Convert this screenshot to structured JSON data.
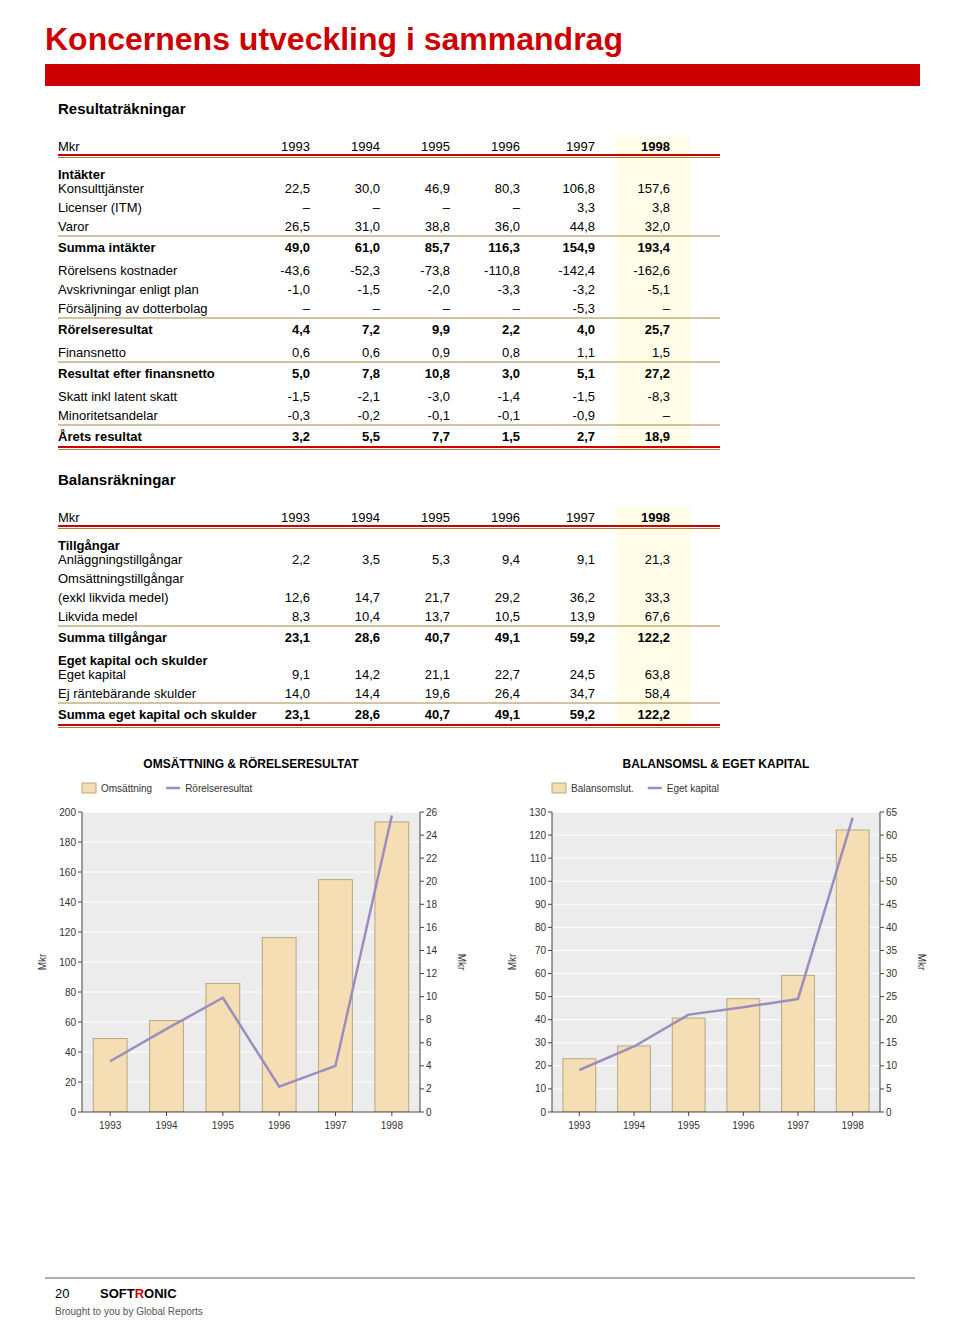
{
  "title": "Koncernens utveckling i sammandrag",
  "accent_color": "#CC0000",
  "tables": [
    {
      "title": "Resultaträkningar",
      "unit": "Mkr",
      "columns": [
        "1993",
        "1994",
        "1995",
        "1996",
        "1997",
        "1998"
      ],
      "rows": [
        {
          "label": "Intäkter",
          "header": true
        },
        {
          "label": "Konsulttjänster",
          "values": [
            "22,5",
            "30,0",
            "46,9",
            "80,3",
            "106,8",
            "157,6"
          ]
        },
        {
          "label": "Licenser (ITM)",
          "values": [
            "–",
            "–",
            "–",
            "–",
            "3,3",
            "3,8"
          ]
        },
        {
          "label": "Varor",
          "values": [
            "26,5",
            "31,0",
            "38,8",
            "36,0",
            "44,8",
            "32,0"
          ]
        },
        {
          "label": "Summa intäkter",
          "total": true,
          "values": [
            "49,0",
            "61,0",
            "85,7",
            "116,3",
            "154,9",
            "193,4"
          ]
        },
        {
          "label": "Rörelsens kostnader",
          "values": [
            "-43,6",
            "-52,3",
            "-73,8",
            "-110,8",
            "-142,4",
            "-162,6"
          ]
        },
        {
          "label": "Avskrivningar enligt plan",
          "values": [
            "-1,0",
            "-1,5",
            "-2,0",
            "-3,3",
            "-3,2",
            "-5,1"
          ]
        },
        {
          "label": "Försäljning av dotterbolag",
          "values": [
            "–",
            "–",
            "–",
            "–",
            "-5,3",
            "–"
          ]
        },
        {
          "label": "Rörelseresultat",
          "total": true,
          "values": [
            "4,4",
            "7,2",
            "9,9",
            "2,2",
            "4,0",
            "25,7"
          ]
        },
        {
          "label": "Finansnetto",
          "values": [
            "0,6",
            "0,6",
            "0,9",
            "0,8",
            "1,1",
            "1,5"
          ]
        },
        {
          "label": "Resultat efter finansnetto",
          "total": true,
          "values": [
            "5,0",
            "7,8",
            "10,8",
            "3,0",
            "5,1",
            "27,2"
          ]
        },
        {
          "label": "Skatt inkl latent skatt",
          "values": [
            "-1,5",
            "-2,1",
            "-3,0",
            "-1,4",
            "-1,5",
            "-8,3"
          ]
        },
        {
          "label": "Minoritetsandelar",
          "values": [
            "-0,3",
            "-0,2",
            "-0,1",
            "-0,1",
            "-0,9",
            "–"
          ]
        },
        {
          "label": "Årets resultat",
          "total": true,
          "values": [
            "3,2",
            "5,5",
            "7,7",
            "1,5",
            "2,7",
            "18,9"
          ]
        }
      ]
    },
    {
      "title": "Balansräkningar",
      "unit": "Mkr",
      "columns": [
        "1993",
        "1994",
        "1995",
        "1996",
        "1997",
        "1998"
      ],
      "rows": [
        {
          "label": "Tillgångar",
          "header": true
        },
        {
          "label": "Anläggningstillgångar",
          "values": [
            "2,2",
            "3,5",
            "5,3",
            "9,4",
            "9,1",
            "21,3"
          ]
        },
        {
          "label": "Omsättningstillgångar"
        },
        {
          "label": "(exkl likvida medel)",
          "values": [
            "12,6",
            "14,7",
            "21,7",
            "29,2",
            "36,2",
            "33,3"
          ]
        },
        {
          "label": "Likvida medel",
          "values": [
            "8,3",
            "10,4",
            "13,7",
            "10,5",
            "13,9",
            "67,6"
          ]
        },
        {
          "label": "Summa tillgångar",
          "total": true,
          "values": [
            "23,1",
            "28,6",
            "40,7",
            "49,1",
            "59,2",
            "122,2"
          ]
        },
        {
          "label": "Eget kapital och skulder",
          "header": true
        },
        {
          "label": "Eget kapital",
          "values": [
            "9,1",
            "14,2",
            "21,1",
            "22,7",
            "24,5",
            "63,8"
          ]
        },
        {
          "label": "Ej räntebärande skulder",
          "values": [
            "14,0",
            "14,4",
            "19,6",
            "26,4",
            "34,7",
            "58,4"
          ]
        },
        {
          "label": "Summa eget kapital och skulder",
          "total": true,
          "values": [
            "23,1",
            "28,6",
            "40,7",
            "49,1",
            "59,2",
            "122,2"
          ]
        }
      ]
    }
  ],
  "chart_data": [
    {
      "type": "bar",
      "title": "OMSÄTTNING & RÖRELSERESULTAT",
      "categories": [
        "1993",
        "1994",
        "1995",
        "1996",
        "1997",
        "1998"
      ],
      "series": [
        {
          "name": "Omsättning",
          "type": "bar",
          "color": "#F5DEB3",
          "values": [
            49.0,
            61.0,
            85.7,
            116.3,
            154.9,
            193.4
          ]
        },
        {
          "name": "Rörelseresultat",
          "type": "line",
          "color": "#9B8DBE",
          "axis": "y2",
          "values": [
            4.4,
            7.2,
            9.9,
            2.2,
            4.0,
            25.7
          ]
        }
      ],
      "ylabel": "Mkr",
      "y2label": "Mkr",
      "ylim": [
        0,
        200
      ],
      "yticks": [
        0,
        20,
        40,
        60,
        80,
        100,
        120,
        140,
        160,
        180,
        200
      ],
      "y2lim": [
        0,
        26
      ],
      "y2ticks": [
        0,
        2,
        4,
        6,
        8,
        10,
        12,
        14,
        16,
        18,
        20,
        22,
        24,
        26
      ],
      "grid": true,
      "legend": "upper left"
    },
    {
      "type": "bar",
      "title": "BALANSOMSL & EGET KAPITAL",
      "categories": [
        "1993",
        "1994",
        "1995",
        "1996",
        "1997",
        "1998"
      ],
      "series": [
        {
          "name": "Balansomslut.",
          "type": "bar",
          "color": "#F5DEB3",
          "values": [
            23.1,
            28.6,
            40.7,
            49.1,
            59.2,
            122.2
          ]
        },
        {
          "name": "Eget kapital",
          "type": "line",
          "color": "#9B8DBE",
          "axis": "y2",
          "values": [
            9.1,
            14.2,
            21.1,
            22.7,
            24.5,
            63.8
          ]
        }
      ],
      "ylabel": "Mkr",
      "y2label": "Mkr",
      "ylim": [
        0,
        130
      ],
      "yticks": [
        0,
        10,
        20,
        30,
        40,
        50,
        60,
        70,
        80,
        90,
        100,
        110,
        120,
        130
      ],
      "y2lim": [
        0,
        65
      ],
      "y2ticks": [
        0,
        5,
        10,
        15,
        20,
        25,
        30,
        35,
        40,
        45,
        50,
        55,
        60,
        65
      ],
      "grid": true,
      "legend": "upper left"
    }
  ],
  "footer": {
    "page": "20",
    "logo": [
      "SOFT",
      "R",
      "ONIC"
    ],
    "credit": "Brought to you by Global Reports"
  }
}
